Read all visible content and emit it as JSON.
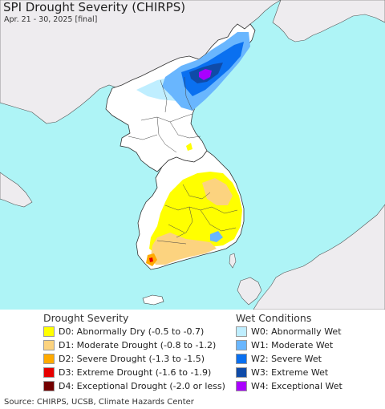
{
  "title": "SPI Drought Severity (CHIRPS)",
  "subtitle": "Apr. 21 - 30, 2025 [final]",
  "colors": {
    "sea": "#aef4f6",
    "land_foreign": "#eeecef",
    "land_neutral": "#ffffff",
    "border": "#333333"
  },
  "legend_drought": {
    "heading": "Drought Severity",
    "items": [
      {
        "label": "D0: Abnormally Dry (-0.5 to -0.7)",
        "color": "#ffff00"
      },
      {
        "label": "D1: Moderate Drought (-0.8 to -1.2)",
        "color": "#fcd37f"
      },
      {
        "label": "D2: Severe Drought (-1.3 to -1.5)",
        "color": "#ffaa00"
      },
      {
        "label": "D3: Extreme Drought (-1.6 to -1.9)",
        "color": "#e60000"
      },
      {
        "label": "D4: Exceptional Drought (-2.0 or less)",
        "color": "#730000"
      }
    ]
  },
  "legend_wet": {
    "heading": "Wet Conditions",
    "items": [
      {
        "label": "W0: Abnormally Wet",
        "color": "#bfeeff"
      },
      {
        "label": "W1: Moderate Wet",
        "color": "#69b6fe"
      },
      {
        "label": "W2: Severe Wet",
        "color": "#0a70f0"
      },
      {
        "label": "W3: Extreme Wet",
        "color": "#0f4ba8"
      },
      {
        "label": "W4: Exceptional Wet",
        "color": "#aa00ff"
      }
    ]
  },
  "source": "Source: CHIRPS, UCSB, Climate Hazards Center"
}
